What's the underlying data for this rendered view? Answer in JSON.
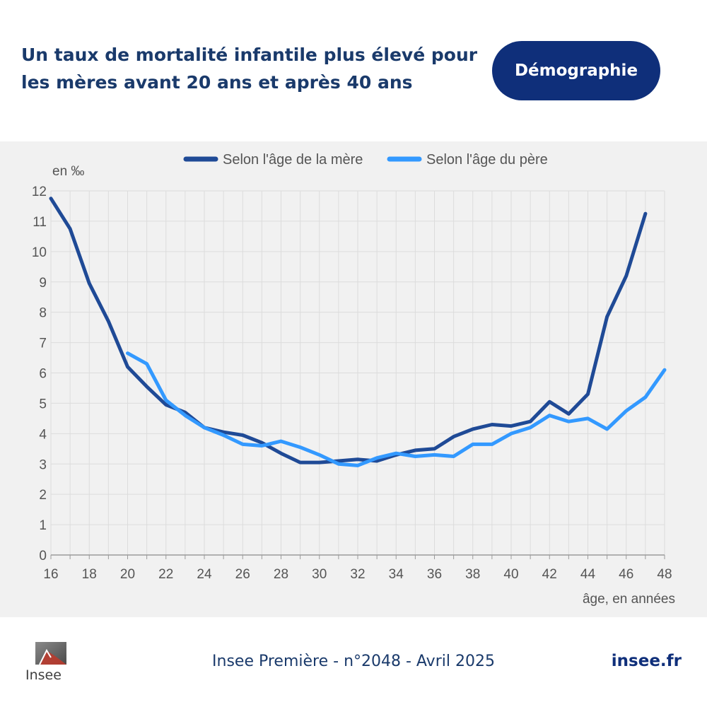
{
  "header": {
    "title": "Un taux de mortalité infantile plus élevé pour les mères avant 20 ans et après 40 ans",
    "badge": "Démographie"
  },
  "footer": {
    "logo_text": "Insee",
    "publication": "Insee Première - n°2048 - Avril 2025",
    "site": "insee.fr"
  },
  "colors": {
    "mother": "#1f4a96",
    "father": "#3399ff",
    "panel": "#f1f1f1",
    "grid": "#dadada",
    "title": "#1a3a6b",
    "badge": "#0f2f7a"
  },
  "chart_data": {
    "type": "line",
    "title": "",
    "ylabel": "en ‰",
    "xlabel": "âge, en années",
    "xlim": [
      16,
      48
    ],
    "ylim": [
      0,
      12
    ],
    "xticks": [
      16,
      18,
      20,
      22,
      24,
      26,
      28,
      30,
      32,
      34,
      36,
      38,
      40,
      42,
      44,
      46,
      48
    ],
    "yticks": [
      0,
      1,
      2,
      3,
      4,
      5,
      6,
      7,
      8,
      9,
      10,
      11,
      12
    ],
    "grid": true,
    "legend_position": "top",
    "series": [
      {
        "name": "Selon l'âge de la mère",
        "x": [
          16,
          17,
          18,
          19,
          20,
          21,
          22,
          23,
          24,
          25,
          26,
          27,
          28,
          29,
          30,
          31,
          32,
          33,
          34,
          35,
          36,
          37,
          38,
          39,
          40,
          41,
          42,
          43,
          44,
          45,
          46,
          47
        ],
        "values": [
          11.75,
          10.75,
          8.95,
          7.7,
          6.2,
          5.55,
          4.95,
          4.7,
          4.2,
          4.05,
          3.95,
          3.7,
          3.35,
          3.05,
          3.05,
          3.1,
          3.15,
          3.1,
          3.3,
          3.45,
          3.5,
          3.9,
          4.15,
          4.3,
          4.25,
          4.4,
          5.05,
          4.65,
          5.3,
          7.85,
          9.2,
          11.25
        ]
      },
      {
        "name": "Selon l'âge du père",
        "x": [
          20,
          21,
          22,
          23,
          24,
          25,
          26,
          27,
          28,
          29,
          30,
          31,
          32,
          33,
          34,
          35,
          36,
          37,
          38,
          39,
          40,
          41,
          42,
          43,
          44,
          45,
          46,
          47,
          48
        ],
        "values": [
          6.65,
          6.3,
          5.1,
          4.6,
          4.2,
          3.95,
          3.65,
          3.6,
          3.75,
          3.55,
          3.3,
          3.0,
          2.95,
          3.2,
          3.35,
          3.25,
          3.3,
          3.25,
          3.65,
          3.65,
          4.0,
          4.2,
          4.6,
          4.4,
          4.5,
          4.15,
          4.75,
          5.2,
          6.1
        ]
      }
    ]
  }
}
